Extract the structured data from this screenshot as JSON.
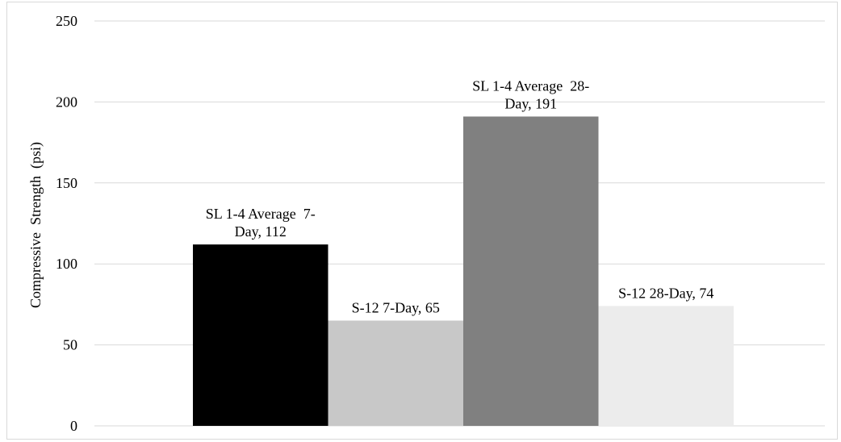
{
  "chart_data": {
    "type": "bar",
    "categories": [
      "SL 1-4 Average 7-Day",
      "S-12 7-Day",
      "SL 1-4 Average 28-Day",
      "S-12 28-Day"
    ],
    "values": [
      112,
      65,
      191,
      74
    ],
    "data_labels": [
      [
        "SL 1-4 Average  7-",
        "Day, 112"
      ],
      [
        "S-12 7-Day, 65"
      ],
      [
        "SL 1-4 Average  28-",
        "Day, 191"
      ],
      [
        "S-12 28-Day, 74"
      ]
    ],
    "colors": [
      "#000000",
      "#c8c8c8",
      "#808080",
      "#ececec"
    ],
    "title": "",
    "xlabel": "",
    "ylabel": "Compressive  Strength  (psi)",
    "ylim": [
      0,
      250
    ],
    "yticks": [
      0,
      50,
      100,
      150,
      200,
      250
    ],
    "grid": true,
    "legend": "none"
  }
}
